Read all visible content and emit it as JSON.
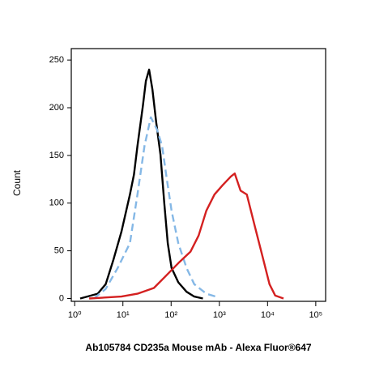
{
  "chart_data": {
    "type": "line",
    "x_label": "Ab105784 CD235a Mouse mAb - Alexa Fluor®647",
    "y_label": "Count",
    "xscale": "log",
    "xlim": [
      0.85,
      160000
    ],
    "ylim": [
      -3,
      262
    ],
    "xticks": [
      {
        "value": 1,
        "label": "10⁰"
      },
      {
        "value": 10,
        "label": "10¹"
      },
      {
        "value": 100,
        "label": "10²"
      },
      {
        "value": 1000,
        "label": "10³"
      },
      {
        "value": 10000,
        "label": "10⁴"
      },
      {
        "value": 100000,
        "label": "10⁵"
      }
    ],
    "yticks": [
      0,
      50,
      100,
      150,
      200,
      250
    ],
    "series": [
      {
        "color": "#000000",
        "dash": false,
        "x": [
          1.3,
          3,
          4.4,
          6.3,
          9.3,
          14,
          17,
          20,
          26,
          30,
          35,
          41,
          49,
          60,
          72,
          85,
          102,
          141,
          209,
          302,
          457
        ],
        "values": [
          0,
          5,
          15,
          40,
          70,
          109,
          130,
          160,
          202,
          228,
          240,
          219,
          185,
          151,
          100,
          58,
          32,
          17,
          7,
          2,
          0
        ]
      },
      {
        "color": "#85b8e6",
        "dash": true,
        "x": [
          2.5,
          4.4,
          7.8,
          14,
          20,
          28,
          38,
          51,
          65,
          81,
          102,
          141,
          209,
          302,
          537,
          977
        ],
        "values": [
          0,
          10,
          32,
          58,
          109,
          160,
          190,
          177,
          160,
          126,
          92,
          58,
          32,
          15,
          5,
          1
        ]
      },
      {
        "color": "#d42020",
        "dash": false,
        "x": [
          2,
          9.3,
          20,
          44,
          79,
          141,
          251,
          372,
          537,
          794,
          1175,
          1738,
          2089,
          2754,
          3715,
          5495,
          8128,
          10965,
          14454,
          21380
        ],
        "values": [
          0,
          2,
          5,
          11,
          24,
          37,
          49,
          66,
          92,
          109,
          119,
          128,
          131,
          113,
          109,
          75,
          41,
          15,
          3,
          0
        ]
      }
    ]
  }
}
